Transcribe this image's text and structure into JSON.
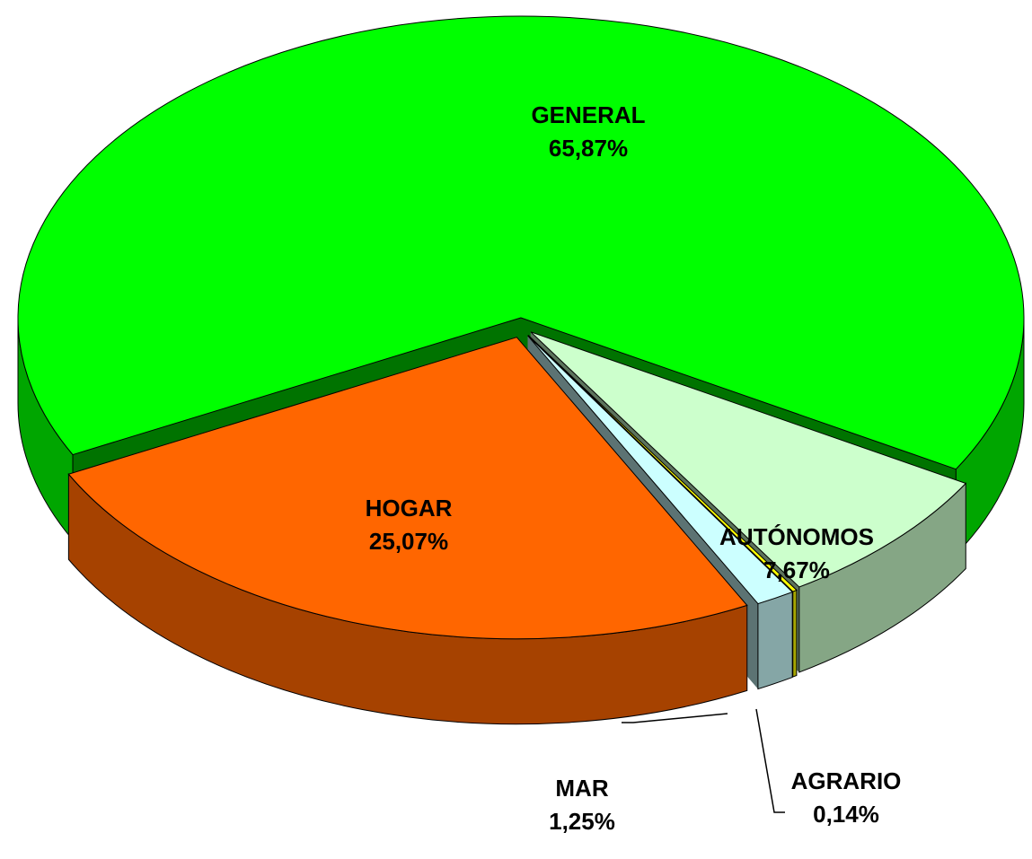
{
  "chart_data": {
    "type": "pie3d",
    "categories": [
      "GENERAL",
      "AUTÓNOMOS",
      "AGRARIO",
      "MAR",
      "HOGAR"
    ],
    "values": [
      65.87,
      7.67,
      0.14,
      1.25,
      25.07
    ],
    "value_labels": [
      "65,87%",
      "7,67%",
      "0,14%",
      "1,25%",
      "25,07%"
    ],
    "colors": [
      "#00ff00",
      "#ccffcc",
      "#ffff00",
      "#ccffff",
      "#ff6600"
    ]
  }
}
